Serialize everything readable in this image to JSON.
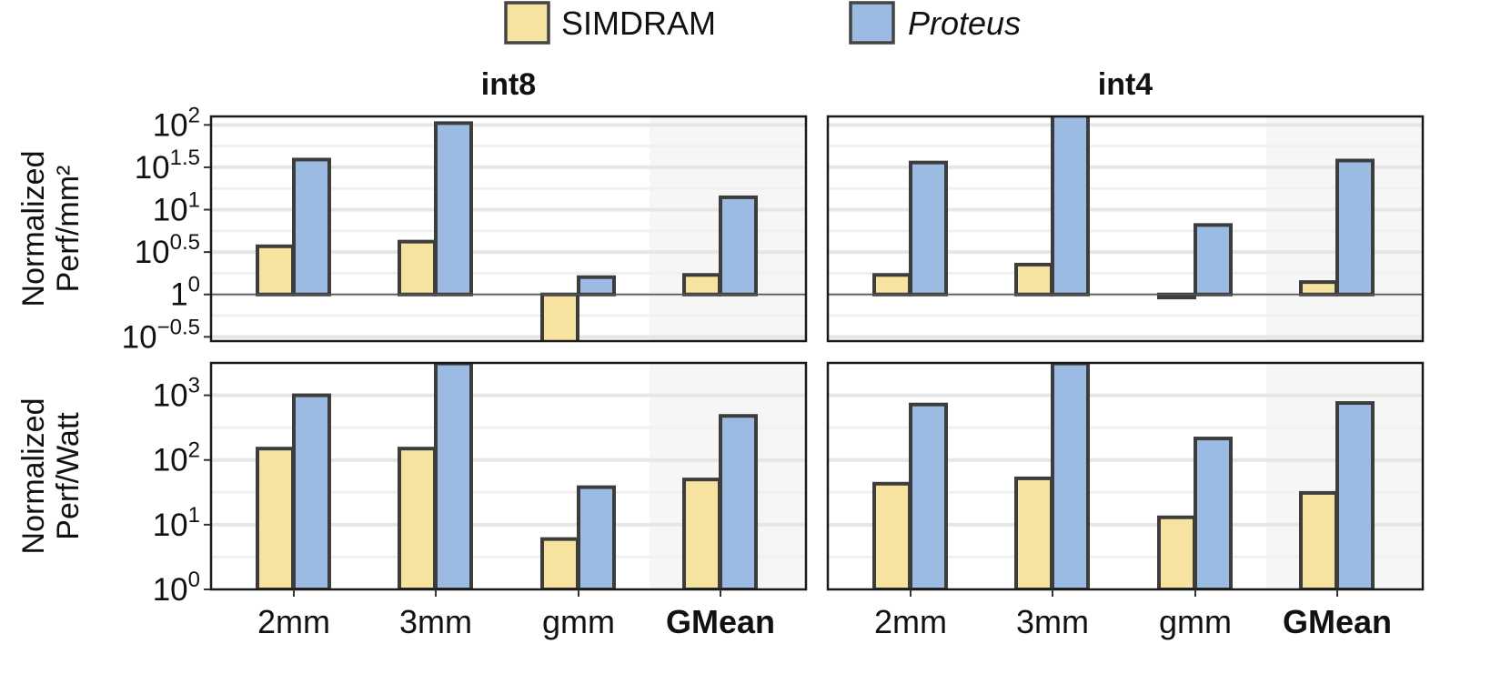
{
  "chart_data": {
    "type": "bar",
    "scale": "log10",
    "legend": {
      "position": "top",
      "entries": [
        {
          "name": "SIMDRAM",
          "color": "#f7e3a0",
          "italic": false
        },
        {
          "name": "Proteus",
          "color": "#9bbbe3",
          "italic": true
        }
      ]
    },
    "categories": [
      "2mm",
      "3mm",
      "gmm",
      "GMean"
    ],
    "bold_categories": [
      "GMean"
    ],
    "columns": [
      "int8",
      "int4"
    ],
    "rows": [
      {
        "ylabel_line1": "Normalized",
        "ylabel_line2": "Perf/mm²",
        "ylim_log10": [
          -0.55,
          2.1
        ],
        "baseline_log10": 0,
        "ticks": [
          {
            "base": "10",
            "exp": "2",
            "log": 2
          },
          {
            "base": "10",
            "exp": "1.5",
            "log": 1.5
          },
          {
            "base": "10",
            "exp": "1",
            "log": 1
          },
          {
            "base": "10",
            "exp": "0.5",
            "log": 0.5
          },
          {
            "base": "1",
            "exp": "0",
            "log": 0
          },
          {
            "base": "10",
            "exp": "−0.5",
            "log": -0.5
          }
        ],
        "minor_gridlines_log10": [
          1.75,
          1.25,
          0.75,
          0.25,
          -0.25
        ],
        "panels": [
          {
            "column": "int8",
            "series": [
              {
                "name": "SIMDRAM",
                "values": [
                  3.7,
                  4.2,
                  0.26,
                  1.7
                ]
              },
              {
                "name": "Proteus",
                "values": [
                  39,
                  105,
                  1.6,
                  14
                ]
              }
            ]
          },
          {
            "column": "int4",
            "series": [
              {
                "name": "SIMDRAM",
                "values": [
                  1.7,
                  2.25,
                  0.92,
                  1.4
                ]
              },
              {
                "name": "Proteus",
                "values": [
                  36,
                  130,
                  6.6,
                  38
                ]
              }
            ]
          }
        ]
      },
      {
        "ylabel_line1": "Normalized",
        "ylabel_line2": "Perf/Watt",
        "ylim_log10": [
          0,
          3.5
        ],
        "baseline_log10": 0,
        "ticks": [
          {
            "base": "10",
            "exp": "3",
            "log": 3
          },
          {
            "base": "10",
            "exp": "2",
            "log": 2
          },
          {
            "base": "10",
            "exp": "1",
            "log": 1
          },
          {
            "base": "10",
            "exp": "0",
            "log": 0
          }
        ],
        "minor_gridlines_log10": [
          3.5,
          2.5,
          1.5,
          0.5
        ],
        "panels": [
          {
            "column": "int8",
            "series": [
              {
                "name": "SIMDRAM",
                "values": [
                  150,
                  150,
                  6,
                  50
                ]
              },
              {
                "name": "Proteus",
                "values": [
                  1000,
                  3100,
                  38,
                  480
                ]
              }
            ]
          },
          {
            "column": "int4",
            "series": [
              {
                "name": "SIMDRAM",
                "values": [
                  43,
                  52,
                  13,
                  31
                ]
              },
              {
                "name": "Proteus",
                "values": [
                  720,
                  3100,
                  215,
                  760
                ]
              }
            ]
          }
        ]
      }
    ]
  }
}
